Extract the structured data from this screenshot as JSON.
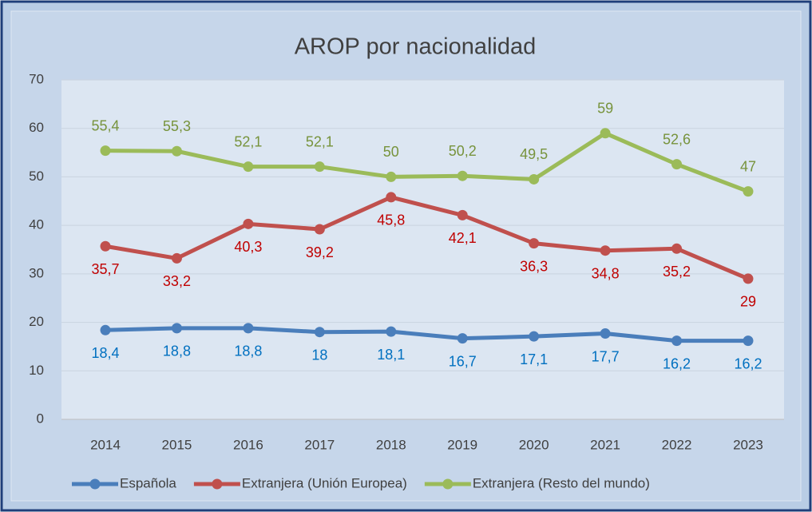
{
  "chart_data": {
    "type": "line",
    "title": "AROP por nacionalidad",
    "categories": [
      "2014",
      "2015",
      "2016",
      "2017",
      "2018",
      "2019",
      "2020",
      "2021",
      "2022",
      "2023"
    ],
    "series": [
      {
        "name": "Española",
        "color": "#4a7ebb",
        "label_color": "#0070c0",
        "label_position": "below",
        "values": [
          18.4,
          18.8,
          18.8,
          18,
          18.1,
          16.7,
          17.1,
          17.7,
          16.2,
          16.2
        ],
        "value_labels": [
          "18,4",
          "18,8",
          "18,8",
          "18",
          "18,1",
          "16,7",
          "17,1",
          "17,7",
          "16,2",
          "16,2"
        ]
      },
      {
        "name": "Extranjera (Unión Europea)",
        "color": "#c0504d",
        "label_color": "#c00000",
        "label_position": "below",
        "values": [
          35.7,
          33.2,
          40.3,
          39.2,
          45.8,
          42.1,
          36.3,
          34.8,
          35.2,
          29
        ],
        "value_labels": [
          "35,7",
          "33,2",
          "40,3",
          "39,2",
          "45,8",
          "42,1",
          "36,3",
          "34,8",
          "35,2",
          "29"
        ]
      },
      {
        "name": "Extranjera (Resto del mundo)",
        "color": "#9bbb59",
        "label_color": "#77933c",
        "label_position": "above",
        "values": [
          55.4,
          55.3,
          52.1,
          52.1,
          50,
          50.2,
          49.5,
          59,
          52.6,
          47
        ],
        "value_labels": [
          "55,4",
          "55,3",
          "52,1",
          "52,1",
          "50",
          "50,2",
          "49,5",
          "59",
          "52,6",
          "47"
        ]
      }
    ],
    "ylim": [
      0,
      70
    ],
    "yticks": [
      0,
      10,
      20,
      30,
      40,
      50,
      60,
      70
    ],
    "grid": true,
    "legend": "bottom"
  }
}
